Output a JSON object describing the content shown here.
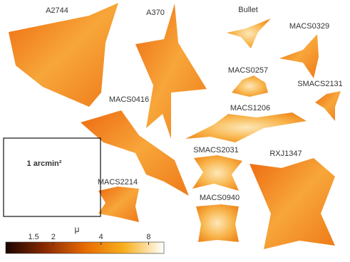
{
  "clusters": [
    {
      "name": "A2744"
    },
    {
      "name": "A370"
    },
    {
      "name": "Bullet"
    },
    {
      "name": "MACS0329"
    },
    {
      "name": "MACS0257"
    },
    {
      "name": "SMACS2131"
    },
    {
      "name": "MACS0416"
    },
    {
      "name": "MACS1206"
    },
    {
      "name": "SMACS2031"
    },
    {
      "name": "RXJ1347"
    },
    {
      "name": "MACS2214"
    },
    {
      "name": "MACS0940"
    }
  ],
  "scale_box": {
    "label": "1 arcmin²"
  },
  "colorbar": {
    "label": "μ",
    "lim": [
      1,
      10
    ],
    "log": true,
    "ticks": [
      1.5,
      2,
      4,
      8
    ]
  }
}
